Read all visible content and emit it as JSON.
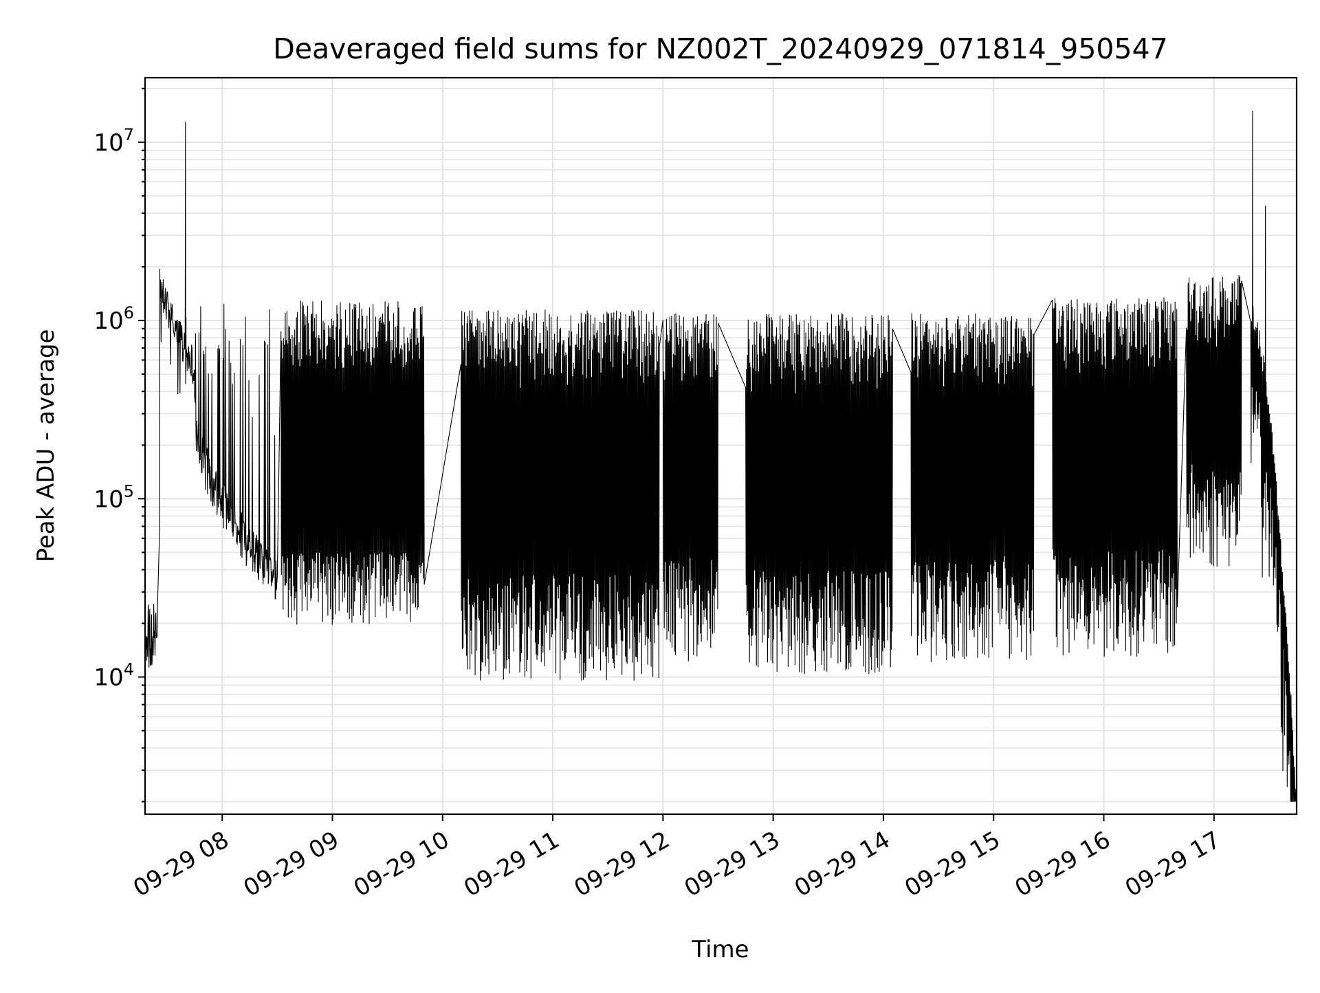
{
  "chart_data": {
    "type": "line",
    "title": "Deaveraged field sums for NZ002T_20240929_071814_950547",
    "xlabel": "Time",
    "ylabel": "Peak ADU - average",
    "y_scale": "log",
    "ylim": [
      1700,
      23000000
    ],
    "xlim": [
      "2024-09-29 07:18",
      "2024-09-29 17:45"
    ],
    "x_ticks": [
      "2024-09-29 08:00",
      "2024-09-29 09:00",
      "2024-09-29 10:00",
      "2024-09-29 11:00",
      "2024-09-29 12:00",
      "2024-09-29 13:00",
      "2024-09-29 14:00",
      "2024-09-29 15:00",
      "2024-09-29 16:00",
      "2024-09-29 17:00"
    ],
    "x_tick_labels": [
      "09-29 08",
      "09-29 09",
      "09-29 10",
      "09-29 11",
      "09-29 12",
      "09-29 13",
      "09-29 14",
      "09-29 15",
      "09-29 16",
      "09-29 17"
    ],
    "y_ticks": [
      10000,
      100000,
      1000000,
      10000000
    ],
    "y_tick_labels": [
      {
        "base": "10",
        "exp": "4"
      },
      {
        "base": "10",
        "exp": "5"
      },
      {
        "base": "10",
        "exp": "6"
      },
      {
        "base": "10",
        "exp": "7"
      }
    ],
    "grid": "major and minor, both axes",
    "line_color": "#000000",
    "series": [
      {
        "segments": [
          {
            "start": "2024-09-29 07:18",
            "end": "2024-09-29 07:26",
            "low": 11000,
            "high": 26000,
            "rise_to": 70000
          },
          {
            "start": "2024-09-29 07:26",
            "end": "2024-09-29 07:45",
            "low": 380000,
            "high": 1800000,
            "decay_to": 550000
          },
          {
            "start": "2024-09-29 07:40",
            "spike": 13000000
          },
          {
            "start": "2024-09-29 07:45",
            "end": "2024-09-29 08:30",
            "low": 25000,
            "high": 1300000,
            "baseline_from": 300000,
            "baseline_to": 35000
          },
          {
            "start": "2024-09-29 08:32",
            "end": "2024-09-29 09:50",
            "low": 15000,
            "high": 1300000,
            "baseline": 35000
          },
          {
            "start": "2024-09-29 10:10",
            "end": "2024-09-29 11:58",
            "low": 9500,
            "high": 1150000
          },
          {
            "start": "2024-09-29 12:00",
            "end": "2024-09-29 12:30",
            "low": 12000,
            "high": 1100000
          },
          {
            "start": "2024-09-29 12:45",
            "end": "2024-09-29 14:05",
            "low": 10000,
            "high": 1100000
          },
          {
            "start": "2024-09-29 14:15",
            "end": "2024-09-29 15:22",
            "low": 12000,
            "high": 1100000
          },
          {
            "start": "2024-09-29 15:32",
            "end": "2024-09-29 16:40",
            "low": 13000,
            "high": 1350000
          },
          {
            "start": "2024-09-29 16:45",
            "end": "2024-09-29 17:15",
            "low": 40000,
            "high": 1800000
          },
          {
            "start": "2024-09-29 17:21",
            "spike": 15000000
          },
          {
            "start": "2024-09-29 17:28",
            "spike": 4400000
          },
          {
            "start": "2024-09-29 17:20",
            "end": "2024-09-29 17:45",
            "low": 2000,
            "high": 1100000,
            "decay_to": 2000
          }
        ]
      }
    ]
  }
}
